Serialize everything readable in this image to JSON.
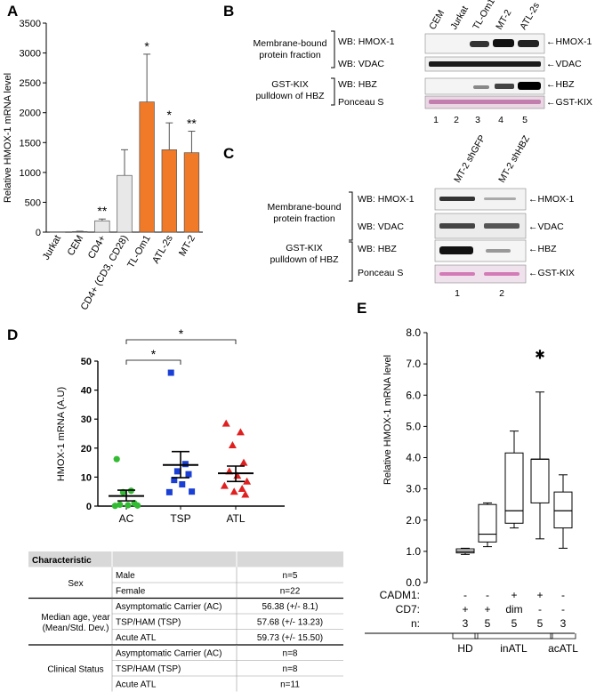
{
  "panels": {
    "A": {
      "label": "A",
      "chart_data": {
        "type": "bar",
        "ylabel": "Relative HMOX-1 mRNA level",
        "ylim": [
          0,
          3500
        ],
        "yticks": [
          0,
          500,
          1000,
          1500,
          2000,
          2500,
          3000,
          3500
        ],
        "categories": [
          "Jurkat",
          "CEM",
          "CD4+",
          "CD4+ (CD3, CD28)",
          "TL-Om1",
          "ATL-2s",
          "MT-2"
        ],
        "values": [
          5,
          10,
          190,
          950,
          2180,
          1380,
          1330
        ],
        "errors": [
          0,
          5,
          30,
          430,
          800,
          450,
          360
        ],
        "significance": [
          "",
          "",
          "**",
          "",
          "*",
          "*",
          "**"
        ],
        "colors": [
          "#e8e8e8",
          "#e8e8e8",
          "#e8e8e8",
          "#e8e8e8",
          "#f07a28",
          "#f07a28",
          "#f07a28"
        ]
      }
    },
    "B": {
      "label": "B",
      "lanes": [
        "CEM",
        "Jurkat",
        "TL-Om1",
        "MT-2",
        "ATL-2s"
      ],
      "lane_numbers": [
        "1",
        "2",
        "3",
        "4",
        "5"
      ],
      "group1": "Membrane-bound protein fraction",
      "group1_line1": "Membrane-bound",
      "group1_line2": "protein fraction",
      "group2_line1": "GST-KIX",
      "group2_line2": "pulldown of HBZ",
      "rows": [
        "WB: HMOX-1",
        "WB: VDAC",
        "WB: HBZ",
        "Ponceau S"
      ],
      "targets": [
        "HMOX-1",
        "VDAC",
        "HBZ",
        "GST-KIX"
      ]
    },
    "C": {
      "label": "C",
      "lanes": [
        "MT-2 shGFP",
        "MT-2 shHBZ"
      ],
      "lane_numbers": [
        "1",
        "2"
      ],
      "group1_line1": "Membrane-bound",
      "group1_line2": "protein fraction",
      "group2_line1": "GST-KIX",
      "group2_line2": "pulldown of HBZ",
      "rows": [
        "WB: HMOX-1",
        "WB: VDAC",
        "WB: HBZ",
        "Ponceau S"
      ],
      "targets": [
        "HMOX-1",
        "VDAC",
        "HBZ",
        "GST-KIX"
      ]
    },
    "D": {
      "label": "D",
      "chart_data": {
        "type": "scatter",
        "ylabel": "HMOX-1 mRNA (A.U)",
        "ylim": [
          0,
          50
        ],
        "yticks": [
          0,
          10,
          20,
          30,
          40,
          50
        ],
        "categories": [
          "AC",
          "TSP",
          "ATL"
        ],
        "series": [
          {
            "name": "AC",
            "color": "#33bb33",
            "marker": "circle",
            "values": [
              16.2,
              5.3,
              4.8,
              1.0,
              0.5,
              0.3,
              0.2,
              0.1
            ],
            "mean": 3.5,
            "sem_low": 1.8,
            "sem_high": 5.5
          },
          {
            "name": "TSP",
            "color": "#1a3fd6",
            "marker": "square",
            "values": [
              46.0,
              14.5,
              12.0,
              11.0,
              9.0,
              7.5,
              5.0,
              4.8
            ],
            "mean": 14.2,
            "sem_low": 9.8,
            "sem_high": 18.8
          },
          {
            "name": "ATL",
            "color": "#e02020",
            "marker": "triangle",
            "values": [
              28.5,
              25.5,
              21.0,
              15.0,
              12.0,
              10.5,
              8.5,
              7.0,
              6.0,
              5.0,
              4.0
            ],
            "mean": 11.3,
            "sem_low": 8.5,
            "sem_high": 13.8
          }
        ],
        "significance": [
          {
            "between": [
              "AC",
              "TSP"
            ],
            "label": "*"
          },
          {
            "between": [
              "AC",
              "ATL"
            ],
            "label": "*"
          }
        ]
      },
      "table": {
        "header": [
          "Characteristic",
          "",
          ""
        ],
        "groups": [
          {
            "name_lines": [
              "Sex"
            ],
            "rows": [
              [
                "Male",
                "n=5"
              ],
              [
                "Female",
                "n=22"
              ]
            ]
          },
          {
            "name_lines": [
              "Median age, year",
              "(Mean/Std. Dev.)"
            ],
            "rows": [
              [
                "Asymptomatic Carrier (AC)",
                "56.38 (+/- 8.1)"
              ],
              [
                "TSP/HAM (TSP)",
                "57.68 (+/- 13.23)"
              ],
              [
                "Acute ATL",
                "59.73 (+/- 15.50)"
              ]
            ]
          },
          {
            "name_lines": [
              "Clinical Status"
            ],
            "rows": [
              [
                "Asymptomatic Carrier (AC)",
                "n=8"
              ],
              [
                "TSP/HAM (TSP)",
                "n=8"
              ],
              [
                "Acute ATL",
                "n=11"
              ]
            ]
          }
        ]
      }
    },
    "E": {
      "label": "E",
      "chart_data": {
        "type": "box",
        "ylabel": "Relative HMOX-1 mRNA level",
        "ylim": [
          0,
          8
        ],
        "yticks": [
          "0.0",
          "1.0",
          "2.0",
          "3.0",
          "4.0",
          "5.0",
          "6.0",
          "7.0",
          "8.0"
        ],
        "boxes": [
          {
            "min": 0.9,
            "q1": 0.95,
            "median": 1.0,
            "q3": 1.08,
            "max": 1.1
          },
          {
            "min": 1.15,
            "q1": 1.3,
            "median": 1.55,
            "q3": 2.5,
            "max": 2.55
          },
          {
            "min": 1.75,
            "q1": 1.9,
            "median": 2.3,
            "q3": 4.15,
            "max": 4.85
          },
          {
            "min": 1.4,
            "q1": 2.55,
            "median": 3.95,
            "q3": 3.95,
            "max": 6.1,
            "outlier": 7.3
          },
          {
            "min": 1.1,
            "q1": 1.75,
            "median": 2.3,
            "q3": 2.9,
            "max": 3.45
          }
        ],
        "row_labels": [
          "CADM1:",
          "CD7:",
          "n:"
        ],
        "cadm1": [
          "-",
          "-",
          "+",
          "+",
          "-"
        ],
        "cd7": [
          "+",
          "+",
          "dim",
          "-",
          "-"
        ],
        "n": [
          "3",
          "5",
          "5",
          "5",
          "3"
        ],
        "groups": [
          {
            "name": "HD",
            "start": 0,
            "end": 0
          },
          {
            "name": "inATL",
            "start": 1,
            "end": 3
          },
          {
            "name": "acATL",
            "start": 4,
            "end": 4
          }
        ]
      }
    }
  }
}
